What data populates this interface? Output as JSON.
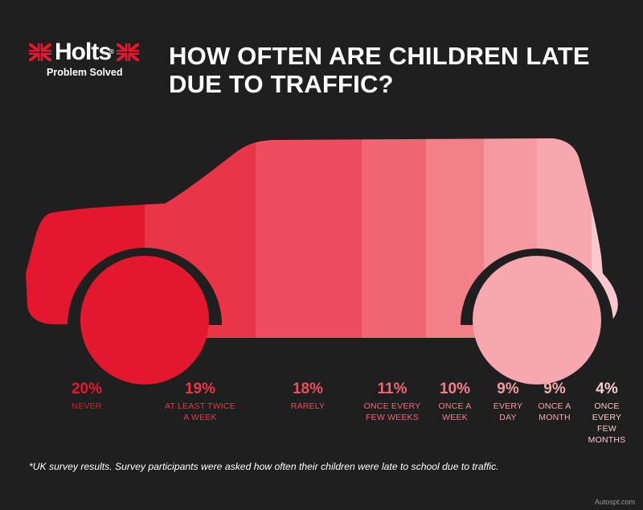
{
  "brand": {
    "name": "Holts",
    "registered": "®",
    "tagline": "Problem Solved",
    "flag_color": "#e4172b"
  },
  "title": "HOW OFTEN ARE CHILDREN LATE DUE TO TRAFFIC?",
  "footnote": "*UK survey results. Survey participants were asked how often their children were late to school due to traffic.",
  "watermark": "Autospt.com",
  "colors": {
    "background": "#1f1f1f",
    "segments": [
      "#e3182e",
      "#e93548",
      "#ed4d5e",
      "#f06673",
      "#f28089",
      "#f59aa1",
      "#f7a8af",
      "#fac8cd"
    ]
  },
  "chart_data": {
    "type": "bar",
    "title": "HOW OFTEN ARE CHILDREN LATE DUE TO TRAFFIC?",
    "unit": "%",
    "categories": [
      "NEVER",
      "AT LEAST TWICE A WEEK",
      "RARELY",
      "ONCE EVERY FEW WEEKS",
      "ONCE A WEEK",
      "EVERY DAY",
      "ONCE A MONTH",
      "ONCE EVERY FEW MONTHS"
    ],
    "values": [
      20,
      19,
      18,
      11,
      10,
      9,
      9,
      4
    ],
    "labels": [
      {
        "value": "20%",
        "caption": [
          "NEVER"
        ]
      },
      {
        "value": "19%",
        "caption": [
          "AT LEAST TWICE",
          "A WEEK"
        ]
      },
      {
        "value": "18%",
        "caption": [
          "RARELY"
        ]
      },
      {
        "value": "11%",
        "caption": [
          "ONCE EVERY",
          "FEW WEEKS"
        ]
      },
      {
        "value": "10%",
        "caption": [
          "ONCE A",
          "WEEK"
        ]
      },
      {
        "value": "9%",
        "caption": [
          "EVERY",
          "DAY"
        ]
      },
      {
        "value": "9%",
        "caption": [
          "ONCE A",
          "MONTH"
        ]
      },
      {
        "value": "4%",
        "caption": [
          "ONCE",
          "EVERY FEW",
          "MONTHS"
        ]
      }
    ]
  }
}
